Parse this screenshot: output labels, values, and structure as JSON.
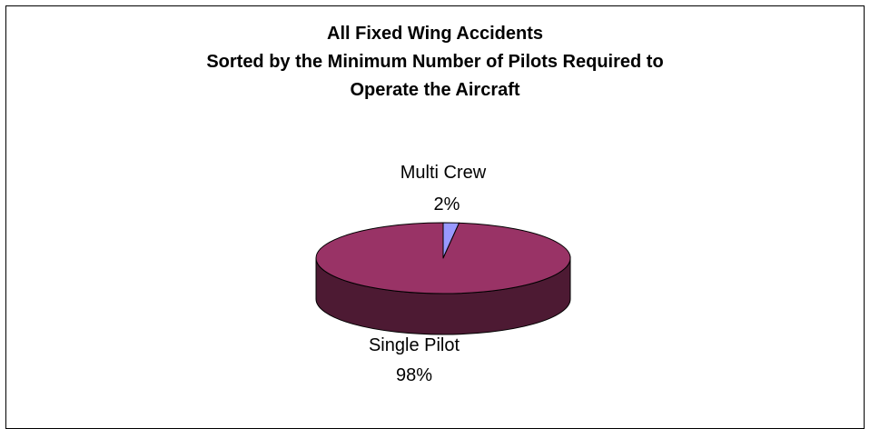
{
  "chart_data": {
    "type": "pie",
    "title_lines": [
      "All Fixed Wing Accidents",
      "Sorted by the Minimum Number of Pilots Required to",
      "Operate the Aircraft"
    ],
    "slices": [
      {
        "name": "Multi Crew",
        "value": 2,
        "label": "2%",
        "color": "#9999ff",
        "side_color": "#4d4d80"
      },
      {
        "name": "Single Pilot",
        "value": 98,
        "label": "98%",
        "color": "#993366",
        "side_color": "#4d1a33"
      }
    ],
    "legend": "none",
    "style": "3d"
  }
}
